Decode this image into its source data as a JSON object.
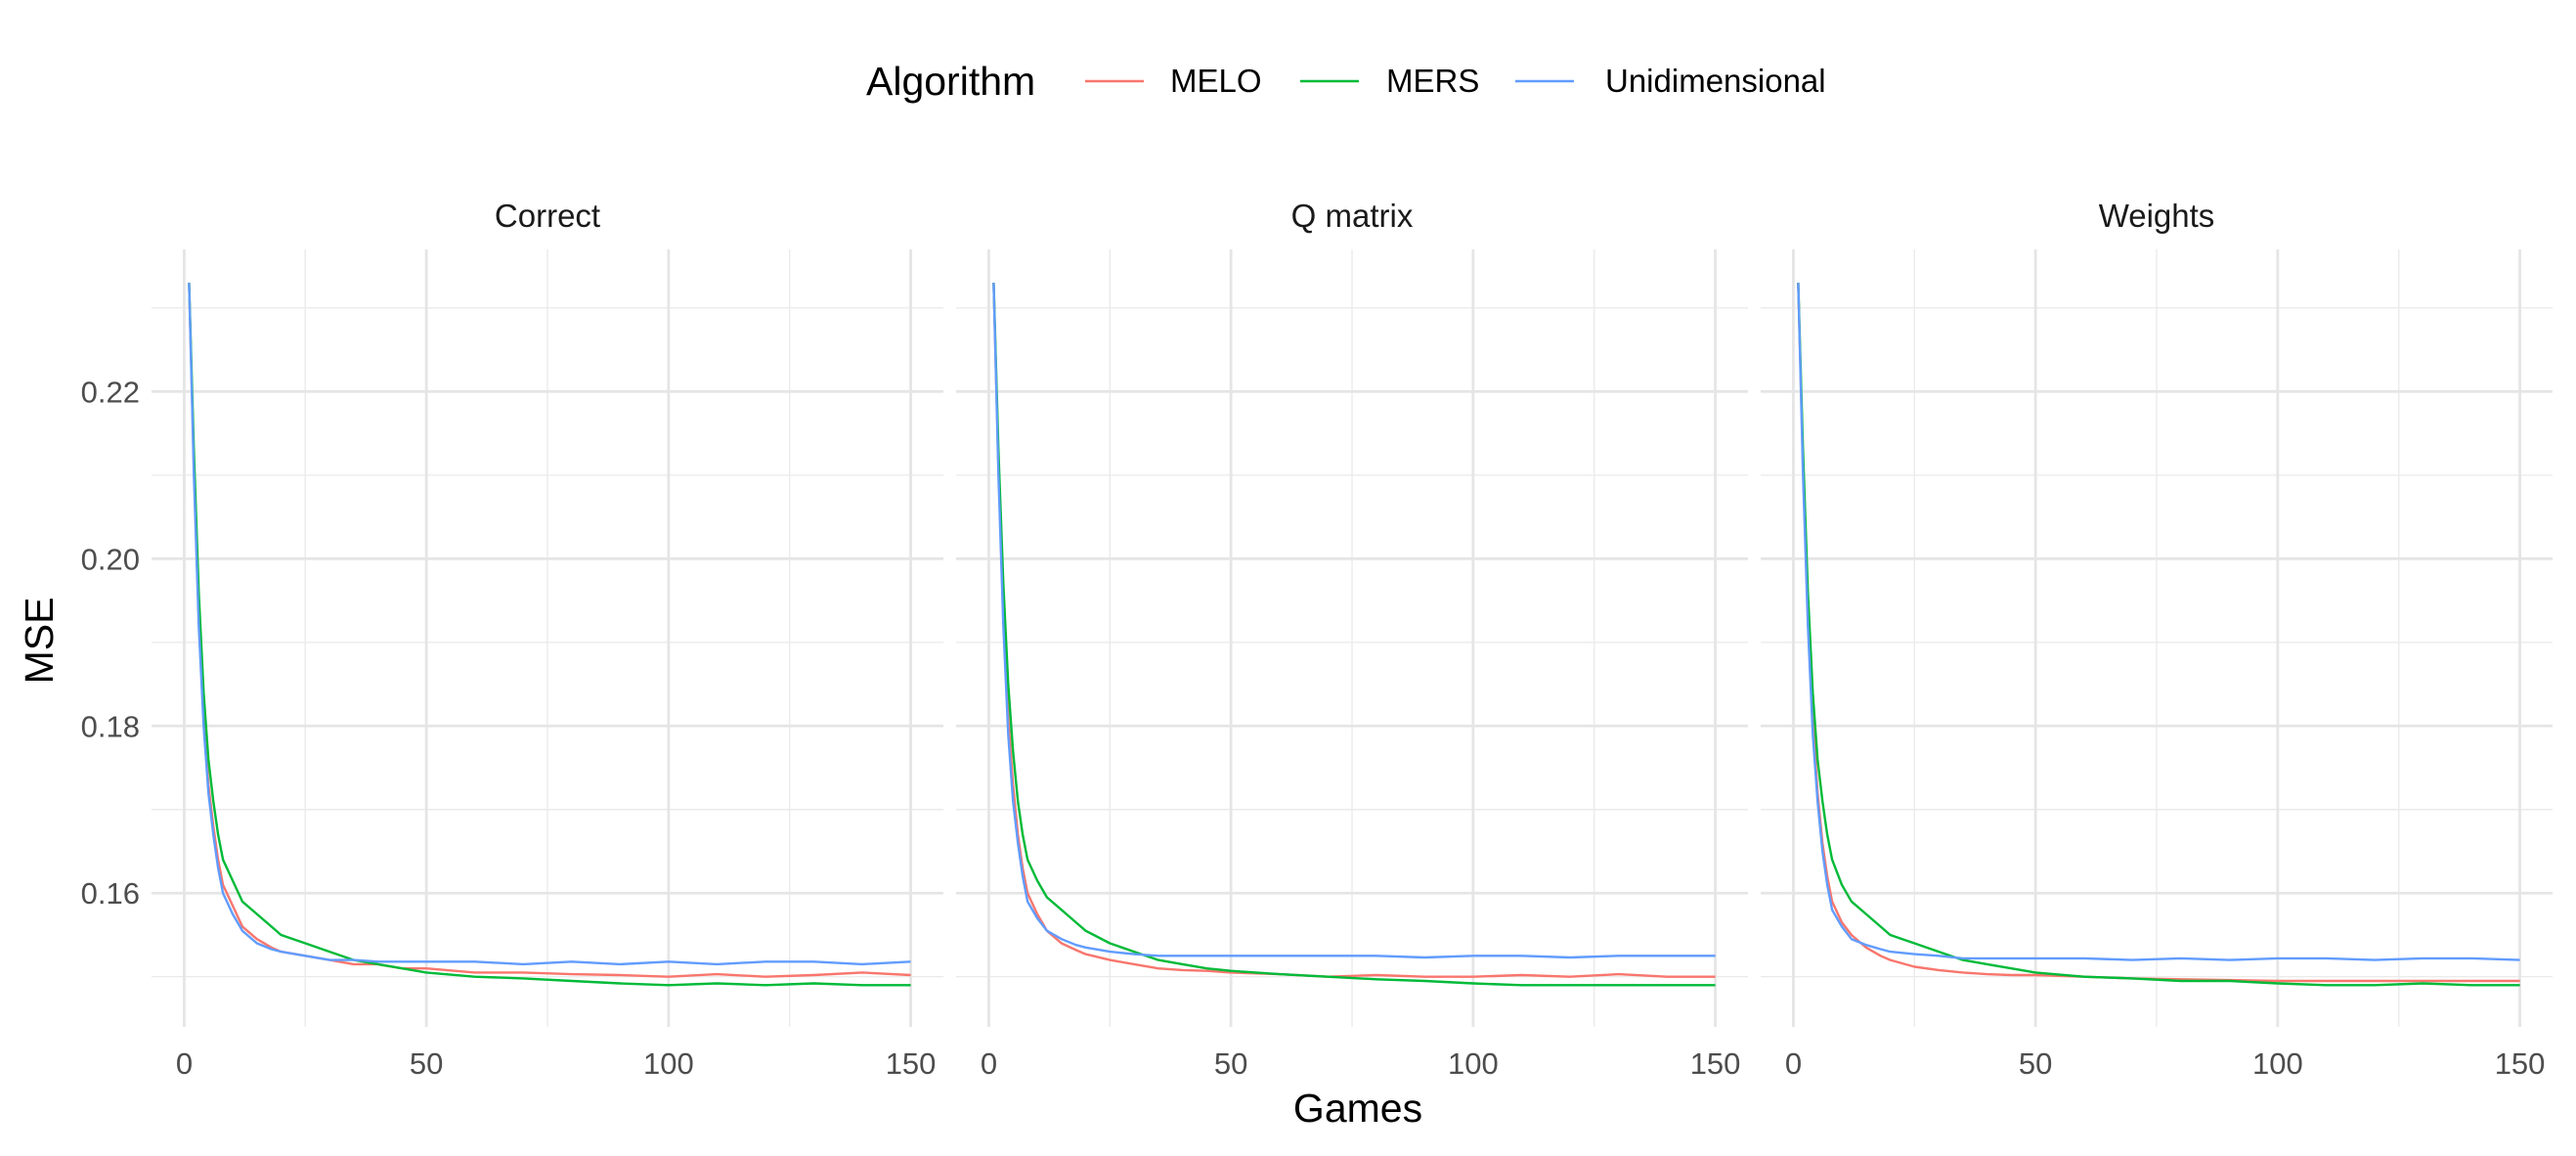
{
  "chart_data": {
    "type": "line",
    "xlabel": "Games",
    "ylabel": "MSE",
    "xlim": [
      0,
      150
    ],
    "ylim": [
      0.144,
      0.237
    ],
    "x_ticks": [
      0,
      50,
      100,
      150
    ],
    "y_ticks": [
      0.16,
      0.18,
      0.2,
      0.22
    ],
    "x_tick_labels": [
      "0",
      "50",
      "100",
      "150"
    ],
    "y_tick_labels": [
      "0.16",
      "0.18",
      "0.20",
      "0.22"
    ],
    "grid": true,
    "legend": {
      "title": "Algorithm",
      "position": "top",
      "entries": [
        "MELO",
        "MERS",
        "Unidimensional"
      ]
    },
    "series_colors": {
      "MELO": "#F8766D",
      "MERS": "#00BA38",
      "Unidimensional": "#619CFF"
    },
    "x": [
      1,
      2,
      3,
      4,
      5,
      6,
      7,
      8,
      10,
      12,
      15,
      18,
      20,
      25,
      30,
      35,
      40,
      45,
      50,
      60,
      70,
      80,
      90,
      100,
      110,
      120,
      130,
      140,
      150
    ],
    "panels": [
      {
        "title": "Correct",
        "series": [
          {
            "name": "MELO",
            "values": [
              0.233,
              0.211,
              0.193,
              0.181,
              0.173,
              0.168,
              0.164,
              0.161,
              0.1585,
              0.156,
              0.1545,
              0.1535,
              0.153,
              0.1525,
              0.152,
              0.1515,
              0.1515,
              0.151,
              0.151,
              0.1505,
              0.1505,
              0.1503,
              0.1502,
              0.15,
              0.1503,
              0.15,
              0.1502,
              0.1505,
              0.1502
            ]
          },
          {
            "name": "MERS",
            "values": [
              0.233,
              0.213,
              0.196,
              0.184,
              0.176,
              0.171,
              0.167,
              0.164,
              0.1615,
              0.159,
              0.1575,
              0.156,
              0.155,
              0.154,
              0.153,
              0.152,
              0.1515,
              0.151,
              0.1505,
              0.15,
              0.1498,
              0.1495,
              0.1492,
              0.149,
              0.1492,
              0.149,
              0.1492,
              0.149,
              0.149
            ]
          },
          {
            "name": "Unidimensional",
            "values": [
              0.233,
              0.21,
              0.192,
              0.18,
              0.172,
              0.167,
              0.163,
              0.16,
              0.1575,
              0.1555,
              0.154,
              0.1533,
              0.153,
              0.1525,
              0.152,
              0.152,
              0.1518,
              0.1518,
              0.1518,
              0.1518,
              0.1515,
              0.1518,
              0.1515,
              0.1518,
              0.1515,
              0.1518,
              0.1518,
              0.1515,
              0.1518
            ]
          }
        ]
      },
      {
        "title": "Q matrix",
        "series": [
          {
            "name": "MELO",
            "values": [
              0.233,
              0.211,
              0.193,
              0.181,
              0.173,
              0.167,
              0.163,
              0.16,
              0.1575,
              0.1555,
              0.154,
              0.1532,
              0.1527,
              0.152,
              0.1515,
              0.151,
              0.1508,
              0.1507,
              0.1505,
              0.1503,
              0.15,
              0.1502,
              0.15,
              0.15,
              0.1502,
              0.15,
              0.1503,
              0.15,
              0.15
            ]
          },
          {
            "name": "MERS",
            "values": [
              0.233,
              0.213,
              0.197,
              0.185,
              0.177,
              0.171,
              0.167,
              0.164,
              0.1615,
              0.1595,
              0.158,
              0.1565,
              0.1555,
              0.154,
              0.153,
              0.152,
              0.1515,
              0.151,
              0.1507,
              0.1503,
              0.15,
              0.1497,
              0.1495,
              0.1492,
              0.149,
              0.149,
              0.149,
              0.149,
              0.149
            ]
          },
          {
            "name": "Unidimensional",
            "values": [
              0.233,
              0.21,
              0.192,
              0.179,
              0.171,
              0.166,
              0.162,
              0.159,
              0.157,
              0.1555,
              0.1545,
              0.1538,
              0.1535,
              0.153,
              0.1527,
              0.1525,
              0.1525,
              0.1525,
              0.1525,
              0.1525,
              0.1525,
              0.1525,
              0.1523,
              0.1525,
              0.1525,
              0.1523,
              0.1525,
              0.1525,
              0.1525
            ]
          }
        ]
      },
      {
        "title": "Weights",
        "series": [
          {
            "name": "MELO",
            "values": [
              0.233,
              0.211,
              0.193,
              0.181,
              0.172,
              0.166,
              0.162,
              0.159,
              0.1565,
              0.155,
              0.1535,
              0.1525,
              0.152,
              0.1512,
              0.1508,
              0.1505,
              0.1503,
              0.1502,
              0.1502,
              0.15,
              0.1498,
              0.1497,
              0.1496,
              0.1495,
              0.1495,
              0.1495,
              0.1495,
              0.1495,
              0.1495
            ]
          },
          {
            "name": "MERS",
            "values": [
              0.233,
              0.213,
              0.196,
              0.184,
              0.176,
              0.171,
              0.167,
              0.164,
              0.161,
              0.159,
              0.1575,
              0.156,
              0.155,
              0.154,
              0.153,
              0.152,
              0.1515,
              0.151,
              0.1505,
              0.15,
              0.1498,
              0.1495,
              0.1495,
              0.1492,
              0.149,
              0.149,
              0.1492,
              0.149,
              0.149
            ]
          },
          {
            "name": "Unidimensional",
            "values": [
              0.233,
              0.21,
              0.192,
              0.179,
              0.171,
              0.165,
              0.161,
              0.158,
              0.156,
              0.1545,
              0.1538,
              0.1533,
              0.153,
              0.1527,
              0.1525,
              0.1522,
              0.1522,
              0.1522,
              0.1522,
              0.1522,
              0.152,
              0.1522,
              0.152,
              0.1522,
              0.1522,
              0.152,
              0.1522,
              0.1522,
              0.152
            ]
          }
        ]
      }
    ]
  }
}
